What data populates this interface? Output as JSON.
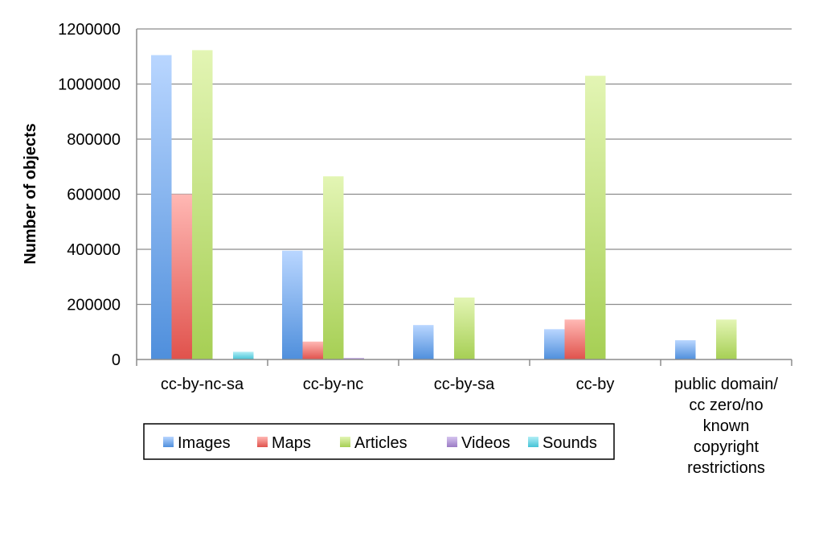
{
  "chart_data": {
    "type": "bar",
    "ylabel": "Number of objects",
    "xlabel": "",
    "ylim": [
      0,
      1200000
    ],
    "yticks": [
      0,
      200000,
      400000,
      600000,
      800000,
      1000000,
      1200000
    ],
    "ytick_labels": [
      "0",
      "200000",
      "400000",
      "600000",
      "800000",
      "1000000",
      "1200000"
    ],
    "grid": "horizontal",
    "legend_position": "bottom",
    "categories": [
      [
        "cc-by-nc-sa"
      ],
      [
        "cc-by-nc"
      ],
      [
        "cc-by-sa"
      ],
      [
        "cc-by"
      ],
      [
        "public domain/",
        "cc zero/no",
        "known",
        "copyright",
        "restrictions"
      ]
    ],
    "series": [
      {
        "name": "Images",
        "color": "#4f8fdc",
        "light": "#b9d6ff",
        "values": [
          1105000,
          395000,
          125000,
          110000,
          70000
        ]
      },
      {
        "name": "Maps",
        "color": "#e0524c",
        "light": "#ffb8b4",
        "values": [
          600000,
          65000,
          0,
          145000,
          0
        ]
      },
      {
        "name": "Articles",
        "color": "#a6cf54",
        "light": "#e3f5b4",
        "values": [
          1123000,
          665000,
          225000,
          1030000,
          145000
        ]
      },
      {
        "name": "Videos",
        "color": "#9b7bc4",
        "light": "#d6c5ef",
        "values": [
          0,
          6000,
          0,
          0,
          0
        ]
      },
      {
        "name": "Sounds",
        "color": "#45c3d6",
        "light": "#b2eef6",
        "values": [
          28000,
          0,
          0,
          0,
          0
        ]
      }
    ]
  }
}
